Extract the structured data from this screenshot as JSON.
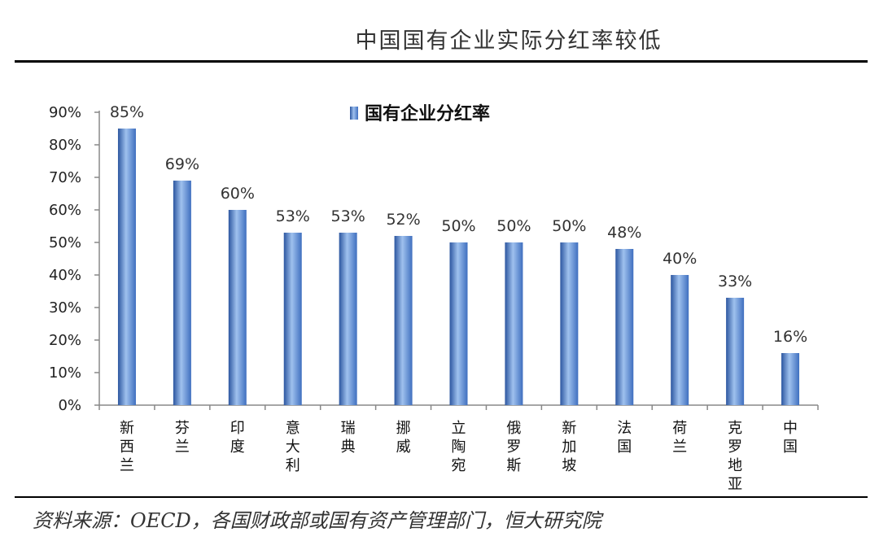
{
  "header": {
    "title": "中国国有企业实际分红率较低"
  },
  "source": {
    "text": "资料来源：OECD，各国财政部或国有资产管理部门，恒大研究院"
  },
  "colors": {
    "bar_main": "#3f6fbf",
    "bar_light": "#9fc1ee",
    "bar_dark": "#2c56a0",
    "axis": "#888888"
  },
  "chart_data": {
    "type": "bar",
    "categories": [
      "新西兰",
      "芬兰",
      "印度",
      "意大利",
      "瑞典",
      "挪威",
      "立陶宛",
      "俄罗斯",
      "新加坡",
      "法国",
      "荷兰",
      "克罗地亚",
      "中国"
    ],
    "series": [
      {
        "name": "国有企业分红率",
        "values": [
          85,
          69,
          60,
          53,
          53,
          52,
          50,
          50,
          50,
          48,
          40,
          33,
          16
        ]
      }
    ],
    "data_labels": [
      "85%",
      "69%",
      "60%",
      "53%",
      "53%",
      "52%",
      "50%",
      "50%",
      "50%",
      "48%",
      "40%",
      "33%",
      "16%"
    ],
    "y_ticks": [
      "0%",
      "10%",
      "20%",
      "30%",
      "40%",
      "50%",
      "60%",
      "70%",
      "80%",
      "90%"
    ],
    "ylim": [
      0,
      90
    ],
    "legend_position": "top-center",
    "grid": false
  }
}
